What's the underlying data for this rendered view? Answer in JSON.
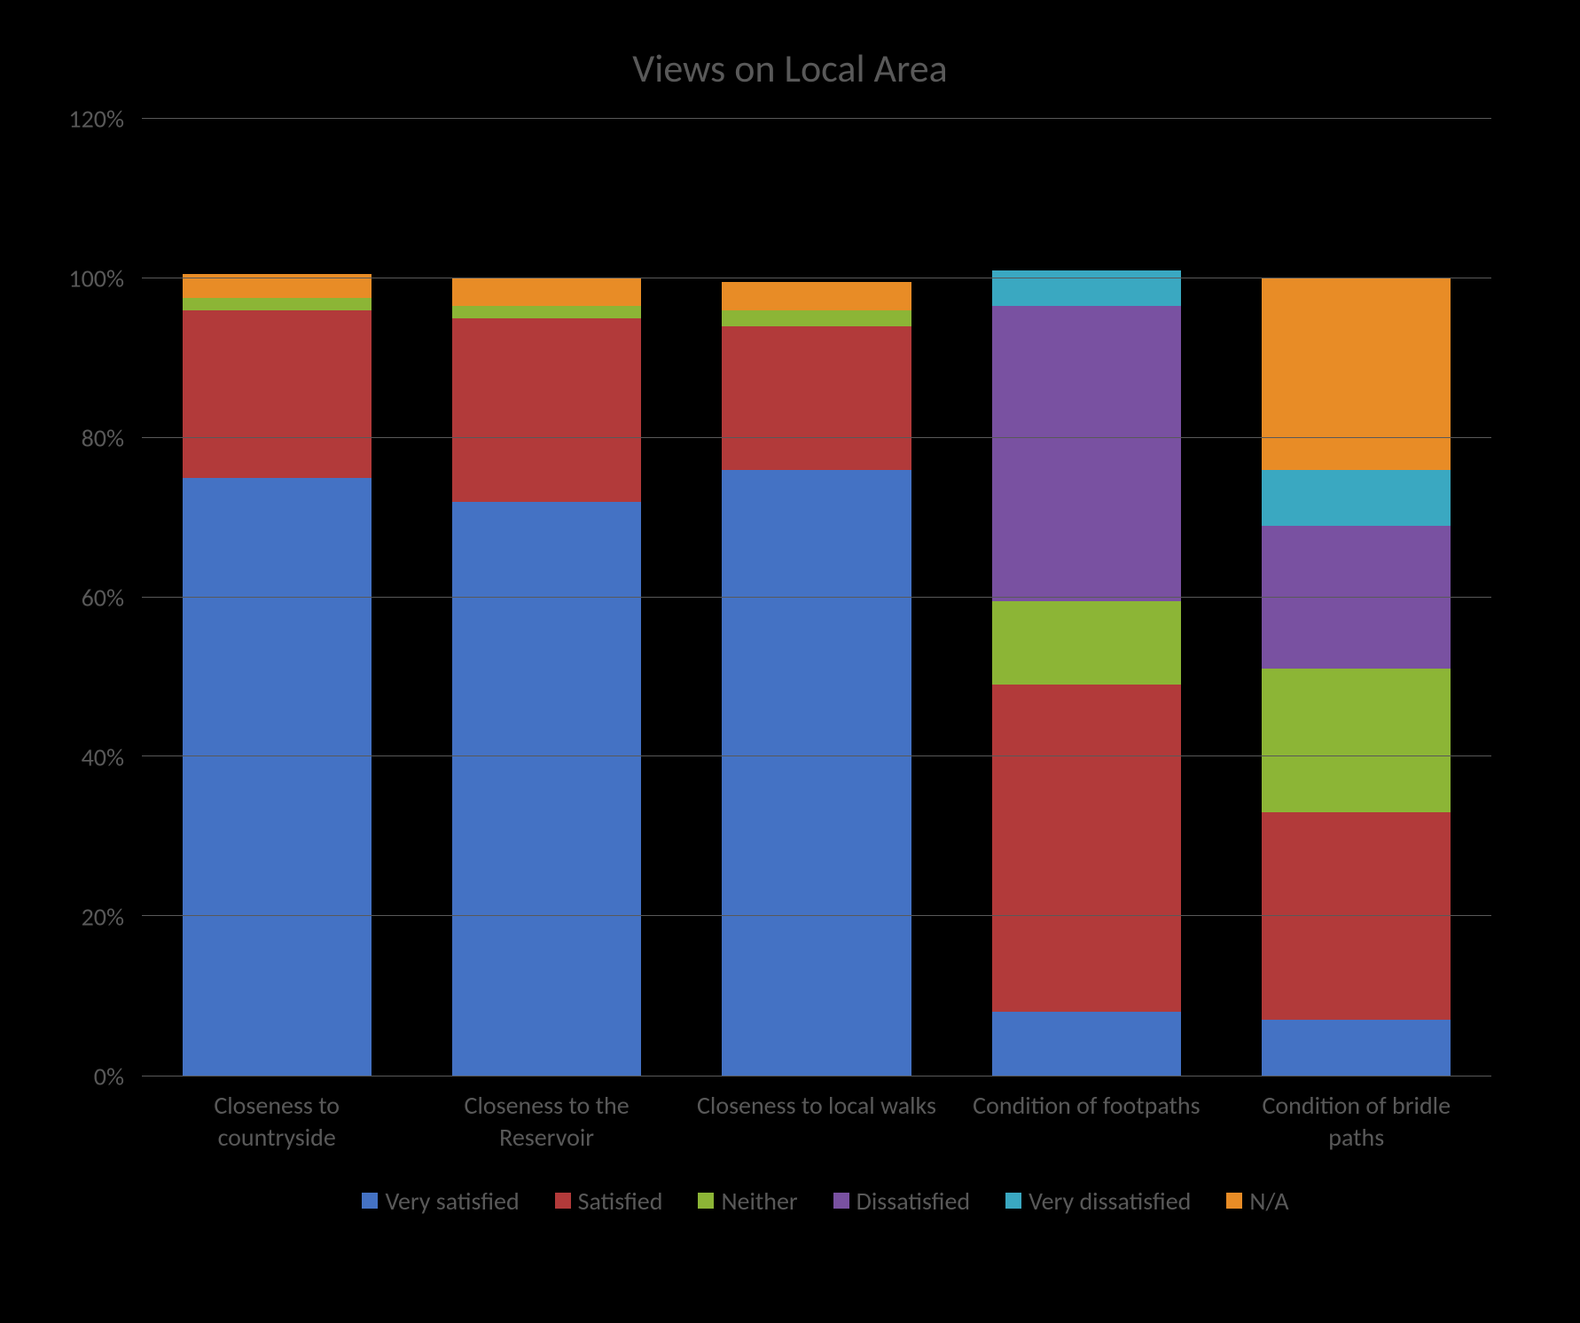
{
  "chart": {
    "type": "stacked-bar",
    "title": "Views on Local Area",
    "title_fontsize": 44,
    "title_color": "#595959",
    "background_color": "#000000",
    "axis_label_color": "#595959",
    "axis_label_fontsize": 28,
    "grid_color": "#595959",
    "ylim": [
      0,
      120
    ],
    "ytick_step": 20,
    "ytick_labels": [
      "0%",
      "20%",
      "40%",
      "60%",
      "80%",
      "100%",
      "120%"
    ],
    "categories": [
      "Closeness to countryside",
      "Closeness to the Reservoir",
      "Closeness to local walks",
      "Condition of footpaths",
      "Condition of bridle paths"
    ],
    "series": [
      {
        "name": "Very satisfied",
        "color": "#4472c4"
      },
      {
        "name": "Satisfied",
        "color": "#b23a3a"
      },
      {
        "name": "Neither",
        "color": "#8cb536"
      },
      {
        "name": "Dissatisfied",
        "color": "#7951a1"
      },
      {
        "name": "Very dissatisfied",
        "color": "#3aa8c1"
      },
      {
        "name": "N/A",
        "color": "#e88c26"
      }
    ],
    "data": [
      [
        75,
        21,
        1.5,
        0,
        0,
        3
      ],
      [
        72,
        23,
        1.5,
        0,
        0,
        3.5
      ],
      [
        76,
        18,
        2,
        0,
        0,
        3.5
      ],
      [
        8,
        41,
        10.5,
        37,
        4.5,
        0
      ],
      [
        7,
        26,
        18,
        18,
        7,
        24
      ]
    ],
    "bar_width_pct": 14
  }
}
